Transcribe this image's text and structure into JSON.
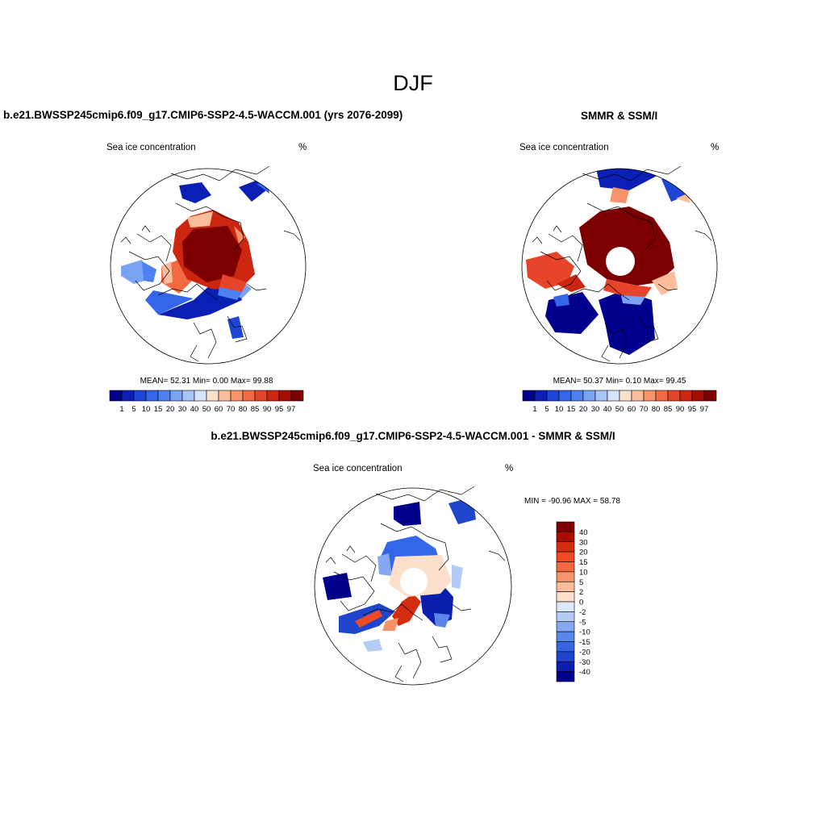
{
  "figure": {
    "season_title": "DJF",
    "model_title": "b.e21.BWSSP245cmip6.f09_g17.CMIP6-SSP2-4.5-WACCM.001 (yrs 2076-2099)",
    "obs_title": "SMMR & SSM/I",
    "diff_title": "b.e21.BWSSP245cmip6.f09_g17.CMIP6-SSP2-4.5-WACCM.001 - SMMR & SSM/I"
  },
  "panels": {
    "model": {
      "left_label": "Sea ice concentration",
      "right_label": "%",
      "stats": "MEAN=  52.31  Min=   0.00  Max=  99.88"
    },
    "obs": {
      "left_label": "Sea ice concentration",
      "right_label": "%",
      "stats": "MEAN=  50.37  Min=   0.10  Max=  99.45"
    },
    "diff": {
      "left_label": "Sea ice concentration",
      "right_label": "%",
      "stats": "MIN = -90.96 MAX =  58.78"
    }
  },
  "colorbars": {
    "concentration": {
      "labels": [
        "1",
        "5",
        "10",
        "15",
        "20",
        "30",
        "40",
        "50",
        "60",
        "70",
        "80",
        "85",
        "90",
        "95",
        "97"
      ],
      "colors": [
        "#00008c",
        "#0a1fb4",
        "#1f45d6",
        "#3366e8",
        "#4f80ef",
        "#7ba3f3",
        "#a8c4f7",
        "#d6e4fa",
        "#fde0cc",
        "#fbbd9c",
        "#f7926a",
        "#f16a44",
        "#e6452a",
        "#cc2610",
        "#a80e00",
        "#7d0000"
      ]
    },
    "difference": {
      "labels": [
        "40",
        "30",
        "20",
        "15",
        "10",
        "5",
        "2",
        "0",
        "-2",
        "-5",
        "-10",
        "-15",
        "-20",
        "-30",
        "-40"
      ],
      "colors": [
        "#7d0000",
        "#a80e00",
        "#d42c10",
        "#f04a24",
        "#f46a40",
        "#f7926a",
        "#fbbd9c",
        "#fde0cc",
        "#dde8f8",
        "#b4cbf6",
        "#86a8f0",
        "#5a86ea",
        "#3366e0",
        "#1f45cc",
        "#0a1fae",
        "#00008c"
      ]
    }
  }
}
